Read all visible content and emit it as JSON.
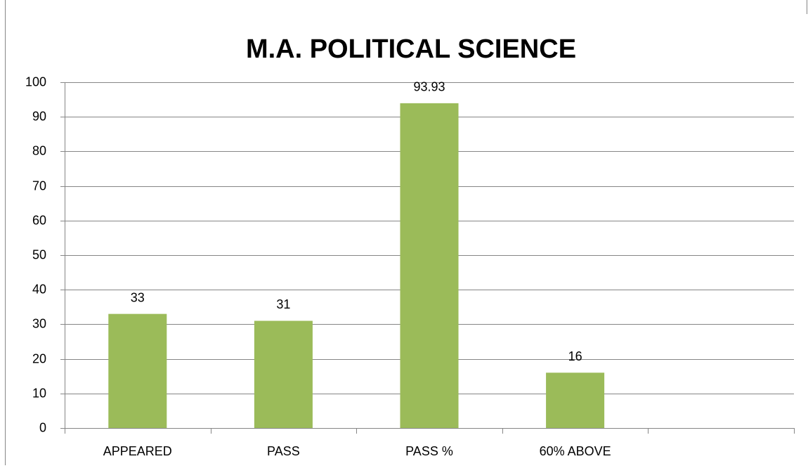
{
  "chart_data": {
    "type": "bar",
    "title": "M.A. POLITICAL SCIENCE",
    "categories": [
      "APPEARED",
      "PASS",
      "PASS %",
      "60% ABOVE",
      null
    ],
    "values": [
      33,
      31,
      93.93,
      16,
      null
    ],
    "color": "#9bbb59",
    "ylim": [
      0,
      100
    ],
    "yticks": [
      0,
      10,
      20,
      30,
      40,
      50,
      60,
      70,
      80,
      90,
      100
    ],
    "grid": true
  }
}
